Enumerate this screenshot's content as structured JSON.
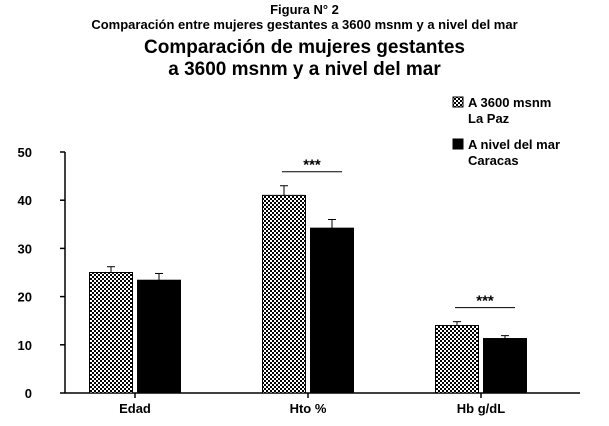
{
  "figure": {
    "number": "Figura N° 2",
    "caption": "Comparación entre mujeres gestantes a 3600 msnm y a nivel del mar"
  },
  "chart_data": {
    "type": "bar",
    "title": "Comparación de mujeres gestantes\na 3600 msnm y a nivel del mar",
    "title_lines": [
      "Comparación de mujeres gestantes",
      "a 3600 msnm y a nivel del mar"
    ],
    "categories": [
      "Edad",
      "Hto %",
      "Hb  g/dL"
    ],
    "series": [
      {
        "name": "A 3600 msnm La Paz",
        "legend_lines": [
          "A 3600 msnm",
          "La Paz"
        ],
        "values": [
          25,
          41,
          14
        ],
        "errors": [
          1.2,
          2.0,
          0.8
        ],
        "pattern": "checker"
      },
      {
        "name": "A nivel del mar Caracas",
        "legend_lines": [
          "A nivel del mar",
          "Caracas"
        ],
        "values": [
          23.4,
          34.2,
          11.3
        ],
        "errors": [
          1.4,
          1.8,
          0.6
        ],
        "pattern": "solid"
      }
    ],
    "annotations": [
      {
        "category": "Hto %",
        "text": "***"
      },
      {
        "category": "Hb  g/dL",
        "text": "***"
      }
    ],
    "xlabel": "",
    "ylabel": "",
    "ylim": [
      0,
      50
    ],
    "yticks": [
      0,
      10,
      20,
      30,
      40,
      50
    ],
    "legend_position": "top-right",
    "grid": false,
    "colors": {
      "solid": "#000000",
      "checker_dark": "#000000",
      "checker_light": "#ffffff"
    }
  }
}
